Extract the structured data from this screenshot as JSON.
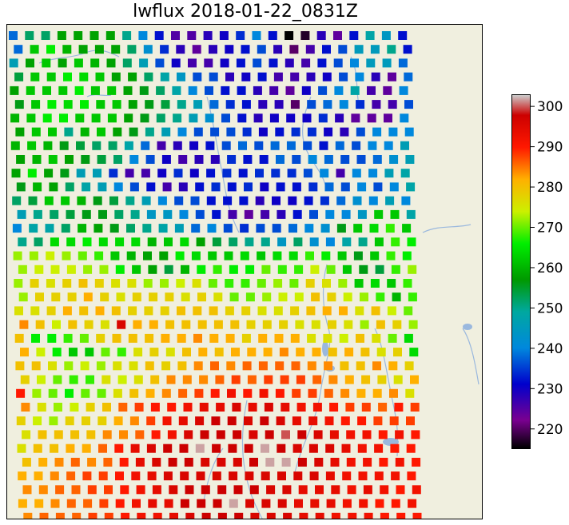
{
  "title": "lwflux 2018-01-22_0831Z",
  "colorbar": {
    "min": 215,
    "max": 303,
    "ticks": [
      220,
      230,
      240,
      250,
      260,
      270,
      280,
      290,
      300
    ],
    "tick_labels": [
      "220",
      "230",
      "240",
      "250",
      "260",
      "270",
      "280",
      "290",
      "300"
    ],
    "colormap": "nipy_spectral",
    "stops": [
      {
        "v": 215,
        "c": "#000000"
      },
      {
        "v": 222,
        "c": "#7a0090"
      },
      {
        "v": 231,
        "c": "#0000cc"
      },
      {
        "v": 240,
        "c": "#0088dd"
      },
      {
        "v": 249,
        "c": "#00a8a0"
      },
      {
        "v": 257,
        "c": "#009900"
      },
      {
        "v": 266,
        "c": "#00ee00"
      },
      {
        "v": 274,
        "c": "#ccf000"
      },
      {
        "v": 282,
        "c": "#ffb000"
      },
      {
        "v": 290,
        "c": "#ff1800"
      },
      {
        "v": 298,
        "c": "#cc0000"
      },
      {
        "v": 303,
        "c": "#cccccc"
      }
    ]
  },
  "map": {
    "land_color": "#f0efdf",
    "water_color": "#9ab8de"
  },
  "chart_data": {
    "type": "heatmap",
    "title": "lwflux 2018-01-22_0831Z",
    "value_range": [
      215,
      303
    ],
    "rows": [
      [
        238,
        252,
        252,
        258,
        258,
        258,
        258,
        250,
        240,
        232,
        225,
        225,
        228,
        230,
        234,
        240,
        232,
        215,
        217,
        228,
        224,
        232,
        248,
        244,
        232
      ],
      [
        238,
        262,
        266,
        260,
        258,
        258,
        258,
        252,
        242,
        234,
        228,
        224,
        228,
        230,
        232,
        236,
        228,
        220,
        226,
        232,
        236,
        245,
        245,
        250,
        232
      ],
      [
        246,
        258,
        262,
        258,
        262,
        260,
        258,
        252,
        246,
        236,
        230,
        226,
        226,
        230,
        232,
        236,
        232,
        228,
        226,
        232,
        236,
        240,
        245,
        245,
        238
      ],
      [
        254,
        262,
        262,
        266,
        264,
        262,
        258,
        258,
        252,
        248,
        244,
        236,
        236,
        228,
        230,
        232,
        226,
        226,
        228,
        230,
        236,
        240,
        228,
        224,
        238
      ],
      [
        258,
        262,
        262,
        262,
        266,
        262,
        262,
        258,
        256,
        252,
        248,
        240,
        236,
        232,
        232,
        228,
        226,
        224,
        230,
        236,
        240,
        248,
        226,
        224,
        240
      ],
      [
        256,
        262,
        266,
        264,
        266,
        262,
        262,
        258,
        256,
        254,
        250,
        246,
        238,
        234,
        232,
        228,
        228,
        220,
        236,
        238,
        240,
        234,
        226,
        226,
        236
      ],
      [
        260,
        262,
        266,
        266,
        262,
        262,
        262,
        258,
        256,
        252,
        250,
        246,
        242,
        236,
        232,
        228,
        230,
        230,
        230,
        234,
        228,
        224,
        224,
        224,
        240
      ],
      [
        258,
        262,
        262,
        250,
        260,
        262,
        258,
        256,
        250,
        246,
        240,
        236,
        236,
        236,
        234,
        230,
        232,
        234,
        234,
        230,
        228,
        236,
        240,
        240,
        240
      ],
      [
        260,
        262,
        260,
        256,
        254,
        252,
        252,
        248,
        238,
        226,
        228,
        230,
        232,
        236,
        238,
        236,
        238,
        238,
        236,
        232,
        238,
        236,
        240,
        240,
        246
      ],
      [
        258,
        260,
        262,
        258,
        256,
        254,
        252,
        240,
        236,
        230,
        226,
        228,
        228,
        234,
        232,
        232,
        238,
        236,
        240,
        238,
        236,
        236,
        238,
        242,
        246
      ],
      [
        258,
        266,
        258,
        256,
        246,
        246,
        234,
        226,
        226,
        230,
        234,
        230,
        232,
        234,
        232,
        234,
        234,
        234,
        236,
        240,
        226,
        240,
        240,
        246,
        248
      ],
      [
        256,
        260,
        258,
        252,
        248,
        246,
        240,
        236,
        232,
        226,
        228,
        232,
        234,
        232,
        234,
        230,
        232,
        232,
        234,
        238,
        236,
        240,
        236,
        240,
        248
      ],
      [
        252,
        254,
        262,
        262,
        260,
        256,
        254,
        250,
        246,
        240,
        236,
        236,
        232,
        232,
        232,
        228,
        230,
        230,
        232,
        234,
        238,
        242,
        240,
        246,
        240
      ],
      [
        246,
        250,
        252,
        254,
        256,
        256,
        252,
        250,
        244,
        244,
        240,
        236,
        232,
        226,
        224,
        226,
        228,
        232,
        236,
        240,
        240,
        244,
        262,
        262,
        248
      ],
      [
        240,
        248,
        248,
        252,
        260,
        258,
        256,
        252,
        250,
        248,
        246,
        238,
        240,
        236,
        234,
        236,
        236,
        238,
        240,
        242,
        256,
        262,
        264,
        268,
        262
      ],
      [
        250,
        252,
        264,
        264,
        266,
        264,
        264,
        264,
        260,
        262,
        264,
        258,
        254,
        252,
        250,
        250,
        244,
        252,
        242,
        240,
        248,
        250,
        262,
        268,
        266
      ],
      [
        272,
        272,
        274,
        272,
        270,
        268,
        262,
        260,
        258,
        258,
        266,
        264,
        262,
        262,
        264,
        262,
        264,
        264,
        268,
        266,
        262,
        256,
        262,
        268,
        266
      ],
      [
        272,
        274,
        274,
        274,
        272,
        272,
        266,
        262,
        258,
        254,
        260,
        266,
        268,
        266,
        266,
        270,
        268,
        268,
        274,
        270,
        262,
        256,
        254,
        268,
        272
      ],
      [
        272,
        278,
        276,
        278,
        280,
        278,
        276,
        276,
        272,
        272,
        274,
        276,
        270,
        268,
        268,
        270,
        272,
        270,
        278,
        276,
        272,
        262,
        264,
        262,
        268
      ],
      [
        272,
        278,
        278,
        278,
        282,
        278,
        276,
        278,
        278,
        278,
        276,
        278,
        276,
        270,
        270,
        272,
        274,
        274,
        280,
        278,
        274,
        272,
        268,
        260,
        268
      ],
      [
        276,
        276,
        278,
        282,
        280,
        282,
        280,
        278,
        278,
        278,
        280,
        280,
        280,
        278,
        278,
        276,
        276,
        278,
        280,
        282,
        282,
        276,
        280,
        274,
        270
      ],
      [
        284,
        280,
        274,
        280,
        278,
        276,
        296,
        282,
        282,
        280,
        280,
        280,
        280,
        280,
        278,
        278,
        278,
        276,
        276,
        278,
        276,
        272,
        280,
        278,
        272
      ],
      [
        280,
        266,
        266,
        268,
        270,
        278,
        280,
        280,
        280,
        282,
        282,
        284,
        282,
        282,
        278,
        282,
        282,
        282,
        276,
        276,
        274,
        280,
        276,
        270,
        264
      ],
      [
        282,
        274,
        266,
        262,
        262,
        270,
        268,
        276,
        278,
        276,
        280,
        282,
        280,
        282,
        282,
        282,
        284,
        282,
        282,
        280,
        282,
        280,
        276,
        278,
        264
      ],
      [
        280,
        280,
        276,
        272,
        274,
        272,
        276,
        276,
        280,
        278,
        280,
        284,
        286,
        284,
        286,
        286,
        286,
        286,
        284,
        284,
        280,
        280,
        284,
        282,
        278
      ],
      [
        278,
        274,
        270,
        268,
        268,
        276,
        274,
        276,
        280,
        284,
        284,
        284,
        286,
        288,
        286,
        288,
        288,
        288,
        286,
        284,
        282,
        280,
        278,
        276,
        282
      ],
      [
        290,
        272,
        270,
        266,
        270,
        270,
        276,
        280,
        282,
        284,
        286,
        288,
        290,
        292,
        290,
        292,
        290,
        288,
        288,
        286,
        284,
        282,
        282,
        284,
        276
      ],
      [
        284,
        276,
        272,
        274,
        278,
        280,
        286,
        288,
        290,
        290,
        292,
        294,
        294,
        296,
        294,
        296,
        294,
        292,
        292,
        290,
        288,
        288,
        286,
        290,
        288
      ],
      [
        278,
        274,
        272,
        278,
        278,
        278,
        282,
        284,
        288,
        292,
        294,
        296,
        298,
        298,
        296,
        298,
        296,
        294,
        294,
        292,
        290,
        290,
        288,
        288,
        288
      ],
      [
        276,
        280,
        280,
        280,
        280,
        284,
        284,
        286,
        290,
        292,
        296,
        298,
        298,
        298,
        296,
        298,
        300,
        298,
        296,
        294,
        292,
        292,
        290,
        292,
        290
      ],
      [
        276,
        280,
        280,
        282,
        282,
        286,
        290,
        294,
        296,
        298,
        298,
        302,
        298,
        298,
        298,
        302,
        298,
        296,
        296,
        296,
        294,
        292,
        292,
        290,
        290
      ],
      [
        280,
        282,
        284,
        286,
        284,
        286,
        290,
        294,
        296,
        298,
        298,
        296,
        296,
        296,
        298,
        302,
        302,
        298,
        296,
        294,
        292,
        292,
        290,
        292,
        290
      ],
      [
        282,
        282,
        284,
        286,
        288,
        288,
        290,
        292,
        294,
        296,
        296,
        296,
        296,
        296,
        296,
        296,
        296,
        296,
        296,
        294,
        292,
        292,
        292,
        292,
        290
      ],
      [
        284,
        284,
        286,
        286,
        288,
        288,
        290,
        292,
        294,
        296,
        298,
        298,
        298,
        298,
        298,
        296,
        296,
        294,
        294,
        294,
        292,
        294,
        292,
        290,
        292
      ],
      [
        282,
        282,
        284,
        286,
        286,
        288,
        290,
        292,
        294,
        294,
        298,
        298,
        298,
        302,
        296,
        296,
        296,
        294,
        294,
        294,
        292,
        292,
        290,
        290,
        292
      ],
      [
        284,
        286,
        286,
        286,
        288,
        288,
        290,
        292,
        292,
        294,
        296,
        298,
        298,
        298,
        296,
        296,
        296,
        294,
        294,
        292,
        292,
        292,
        290,
        290,
        290
      ]
    ]
  }
}
